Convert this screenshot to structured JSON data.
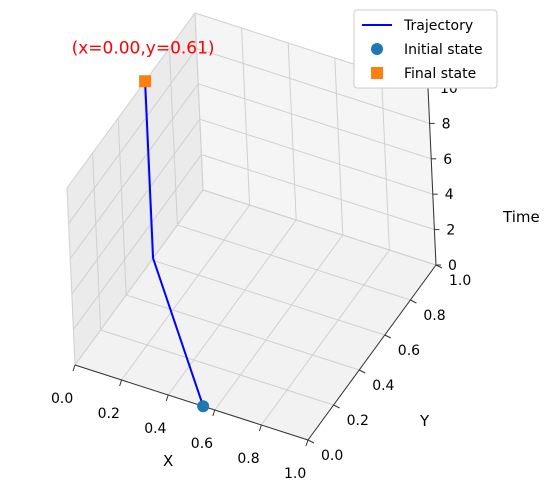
{
  "chart_data": {
    "type": "line",
    "projection": "3d",
    "title": "",
    "xlabel": "X",
    "ylabel": "Y",
    "zlabel": "Time",
    "xlim": [
      0.0,
      1.0
    ],
    "ylim": [
      0.0,
      1.0
    ],
    "zlim": [
      0,
      10
    ],
    "xticks": [
      "0.0",
      "0.2",
      "0.4",
      "0.6",
      "0.8",
      "1.0"
    ],
    "yticks": [
      "0.0",
      "0.2",
      "0.4",
      "0.6",
      "0.8",
      "1.0"
    ],
    "zticks": [
      "0",
      "2",
      "4",
      "6",
      "8",
      "10"
    ],
    "grid": true,
    "legend_position": "top-right",
    "series": [
      {
        "name": "Trajectory",
        "type": "line",
        "color": "#0000ff",
        "x": [
          0.55,
          0.0,
          0.0
        ],
        "y": [
          0.0,
          0.61,
          0.61
        ],
        "z": [
          0.0,
          0.0,
          10.0
        ]
      },
      {
        "name": "Initial state",
        "type": "scatter",
        "marker": "circle",
        "color": "#1f77b4",
        "x": [
          0.55
        ],
        "y": [
          0.0
        ],
        "z": [
          0.0
        ]
      },
      {
        "name": "Final state",
        "type": "scatter",
        "marker": "square",
        "color": "#ff7f0e",
        "x": [
          0.0
        ],
        "y": [
          0.61
        ],
        "z": [
          10.0
        ]
      }
    ],
    "annotations": [
      {
        "text": "(x=0.00,y=0.61)",
        "color": "#ff0000",
        "anchor": "final-state"
      }
    ]
  }
}
